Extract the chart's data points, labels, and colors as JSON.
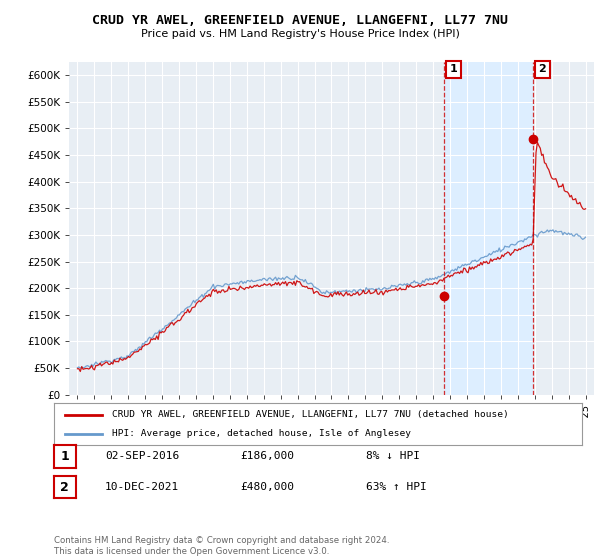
{
  "title": "CRUD YR AWEL, GREENFIELD AVENUE, LLANGEFNI, LL77 7NU",
  "subtitle": "Price paid vs. HM Land Registry's House Price Index (HPI)",
  "ylabel_ticks": [
    "£0",
    "£50K",
    "£100K",
    "£150K",
    "£200K",
    "£250K",
    "£300K",
    "£350K",
    "£400K",
    "£450K",
    "£500K",
    "£550K",
    "£600K"
  ],
  "ytick_values": [
    0,
    50000,
    100000,
    150000,
    200000,
    250000,
    300000,
    350000,
    400000,
    450000,
    500000,
    550000,
    600000
  ],
  "ylim": [
    0,
    625000
  ],
  "xlim_start": 1994.5,
  "xlim_end": 2025.5,
  "red_color": "#cc0000",
  "blue_color": "#6699cc",
  "shade_color": "#ddeeff",
  "sale1_x": 2016.67,
  "sale1_y": 186000,
  "sale2_x": 2021.92,
  "sale2_y": 480000,
  "legend_label1": "CRUD YR AWEL, GREENFIELD AVENUE, LLANGEFNI, LL77 7NU (detached house)",
  "legend_label2": "HPI: Average price, detached house, Isle of Anglesey",
  "table_row1_num": "1",
  "table_row1_date": "02-SEP-2016",
  "table_row1_price": "£186,000",
  "table_row1_hpi": "8% ↓ HPI",
  "table_row2_num": "2",
  "table_row2_date": "10-DEC-2021",
  "table_row2_price": "£480,000",
  "table_row2_hpi": "63% ↑ HPI",
  "footer": "Contains HM Land Registry data © Crown copyright and database right 2024.\nThis data is licensed under the Open Government Licence v3.0.",
  "plot_bg": "#e8eef4"
}
